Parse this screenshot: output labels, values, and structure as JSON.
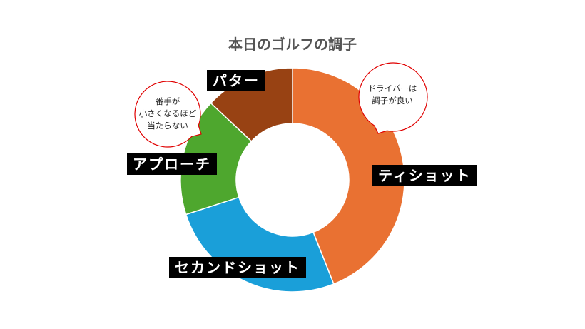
{
  "chart_data": {
    "type": "pie",
    "donut": true,
    "title": "本日のゴルフの調子",
    "categories": [
      "ティショット",
      "セカンドショット",
      "アプローチ",
      "パター"
    ],
    "values": [
      44,
      26,
      17,
      13
    ],
    "unit": "% (estimated)",
    "colors": [
      "#E97132",
      "#1A9FD9",
      "#4EA72E",
      "#984213"
    ],
    "labels_style": "white text on black boxes",
    "annotations": [
      {
        "text_lines": [
          "ドライバーは",
          "調子が良い"
        ],
        "target": "ティショット"
      },
      {
        "text_lines": [
          "番手が",
          "小さくなるほど",
          "当たらない"
        ],
        "target": "アプローチ"
      }
    ]
  }
}
